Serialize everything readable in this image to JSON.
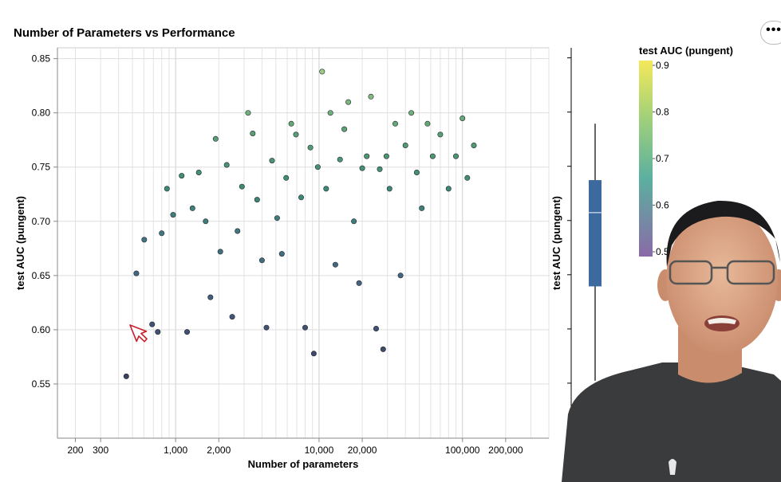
{
  "chart_data": {
    "type": "scatter",
    "title": "Number of Parameters vs Performance",
    "xlabel": "Number of parameters",
    "ylabel": "test AUC (pungent)",
    "x_scale": "log",
    "xlim": [
      150,
      400000
    ],
    "ylim": [
      0.5,
      0.86
    ],
    "x_ticks": [
      200,
      300,
      1000,
      2000,
      10000,
      20000,
      100000,
      200000
    ],
    "x_tick_labels": [
      "200",
      "300",
      "1,000",
      "2,000",
      "10,000",
      "20,000",
      "100,000",
      "200,000"
    ],
    "y_ticks": [
      0.55,
      0.6,
      0.65,
      0.7,
      0.75,
      0.8,
      0.85
    ],
    "y_tick_labels": [
      "0.55",
      "0.60",
      "0.65",
      "0.70",
      "0.75",
      "0.80",
      "0.85"
    ],
    "grid": true,
    "color_encoding": "test AUC (pungent)",
    "colorscale": "viridis",
    "points": [
      [
        453,
        0.557
      ],
      [
        532,
        0.652
      ],
      [
        604,
        0.683
      ],
      [
        686,
        0.605
      ],
      [
        751,
        0.598
      ],
      [
        800,
        0.689
      ],
      [
        870,
        0.73
      ],
      [
        960,
        0.706
      ],
      [
        1102,
        0.742
      ],
      [
        1202,
        0.598
      ],
      [
        1312,
        0.712
      ],
      [
        1450,
        0.745
      ],
      [
        1620,
        0.7
      ],
      [
        1750,
        0.63
      ],
      [
        1900,
        0.776
      ],
      [
        2050,
        0.672
      ],
      [
        2270,
        0.752
      ],
      [
        2480,
        0.612
      ],
      [
        2700,
        0.691
      ],
      [
        2900,
        0.732
      ],
      [
        3200,
        0.8
      ],
      [
        3450,
        0.781
      ],
      [
        3700,
        0.72
      ],
      [
        4000,
        0.664
      ],
      [
        4300,
        0.602
      ],
      [
        4700,
        0.756
      ],
      [
        5100,
        0.703
      ],
      [
        5500,
        0.67
      ],
      [
        5900,
        0.74
      ],
      [
        6400,
        0.79
      ],
      [
        6900,
        0.78
      ],
      [
        7500,
        0.722
      ],
      [
        8000,
        0.602
      ],
      [
        8700,
        0.768
      ],
      [
        9200,
        0.578
      ],
      [
        9800,
        0.75
      ],
      [
        10500,
        0.838
      ],
      [
        11200,
        0.73
      ],
      [
        12000,
        0.8
      ],
      [
        13000,
        0.66
      ],
      [
        14000,
        0.757
      ],
      [
        15000,
        0.785
      ],
      [
        16000,
        0.81
      ],
      [
        17500,
        0.7
      ],
      [
        19000,
        0.643
      ],
      [
        20000,
        0.749
      ],
      [
        21500,
        0.76
      ],
      [
        23000,
        0.815
      ],
      [
        25000,
        0.601
      ],
      [
        26500,
        0.748
      ],
      [
        28000,
        0.582
      ],
      [
        29500,
        0.76
      ],
      [
        31000,
        0.73
      ],
      [
        34000,
        0.79
      ],
      [
        37000,
        0.65
      ],
      [
        40000,
        0.77
      ],
      [
        44000,
        0.8
      ],
      [
        48000,
        0.745
      ],
      [
        52000,
        0.712
      ],
      [
        57000,
        0.79
      ],
      [
        62000,
        0.76
      ],
      [
        70000,
        0.78
      ],
      [
        80000,
        0.73
      ],
      [
        90000,
        0.76
      ],
      [
        100000,
        0.795
      ],
      [
        108000,
        0.74
      ],
      [
        120000,
        0.77
      ]
    ],
    "boxplot": {
      "orientation": "vertical",
      "whisker_low": 0.553,
      "q1": 0.64,
      "median": 0.708,
      "q3": 0.738,
      "whisker_high": 0.79
    },
    "legend": {
      "title": "test AUC (pungent)",
      "labels": [
        "0.9",
        "0.8",
        "0.7",
        "0.6",
        "0.5"
      ],
      "values": [
        0.9,
        0.8,
        0.7,
        0.6,
        0.5
      ],
      "colors": [
        "#fde725",
        "#5ec962",
        "#21918c",
        "#3b528b",
        "#440154"
      ]
    }
  },
  "ui": {
    "menu_glyph": "•••"
  }
}
